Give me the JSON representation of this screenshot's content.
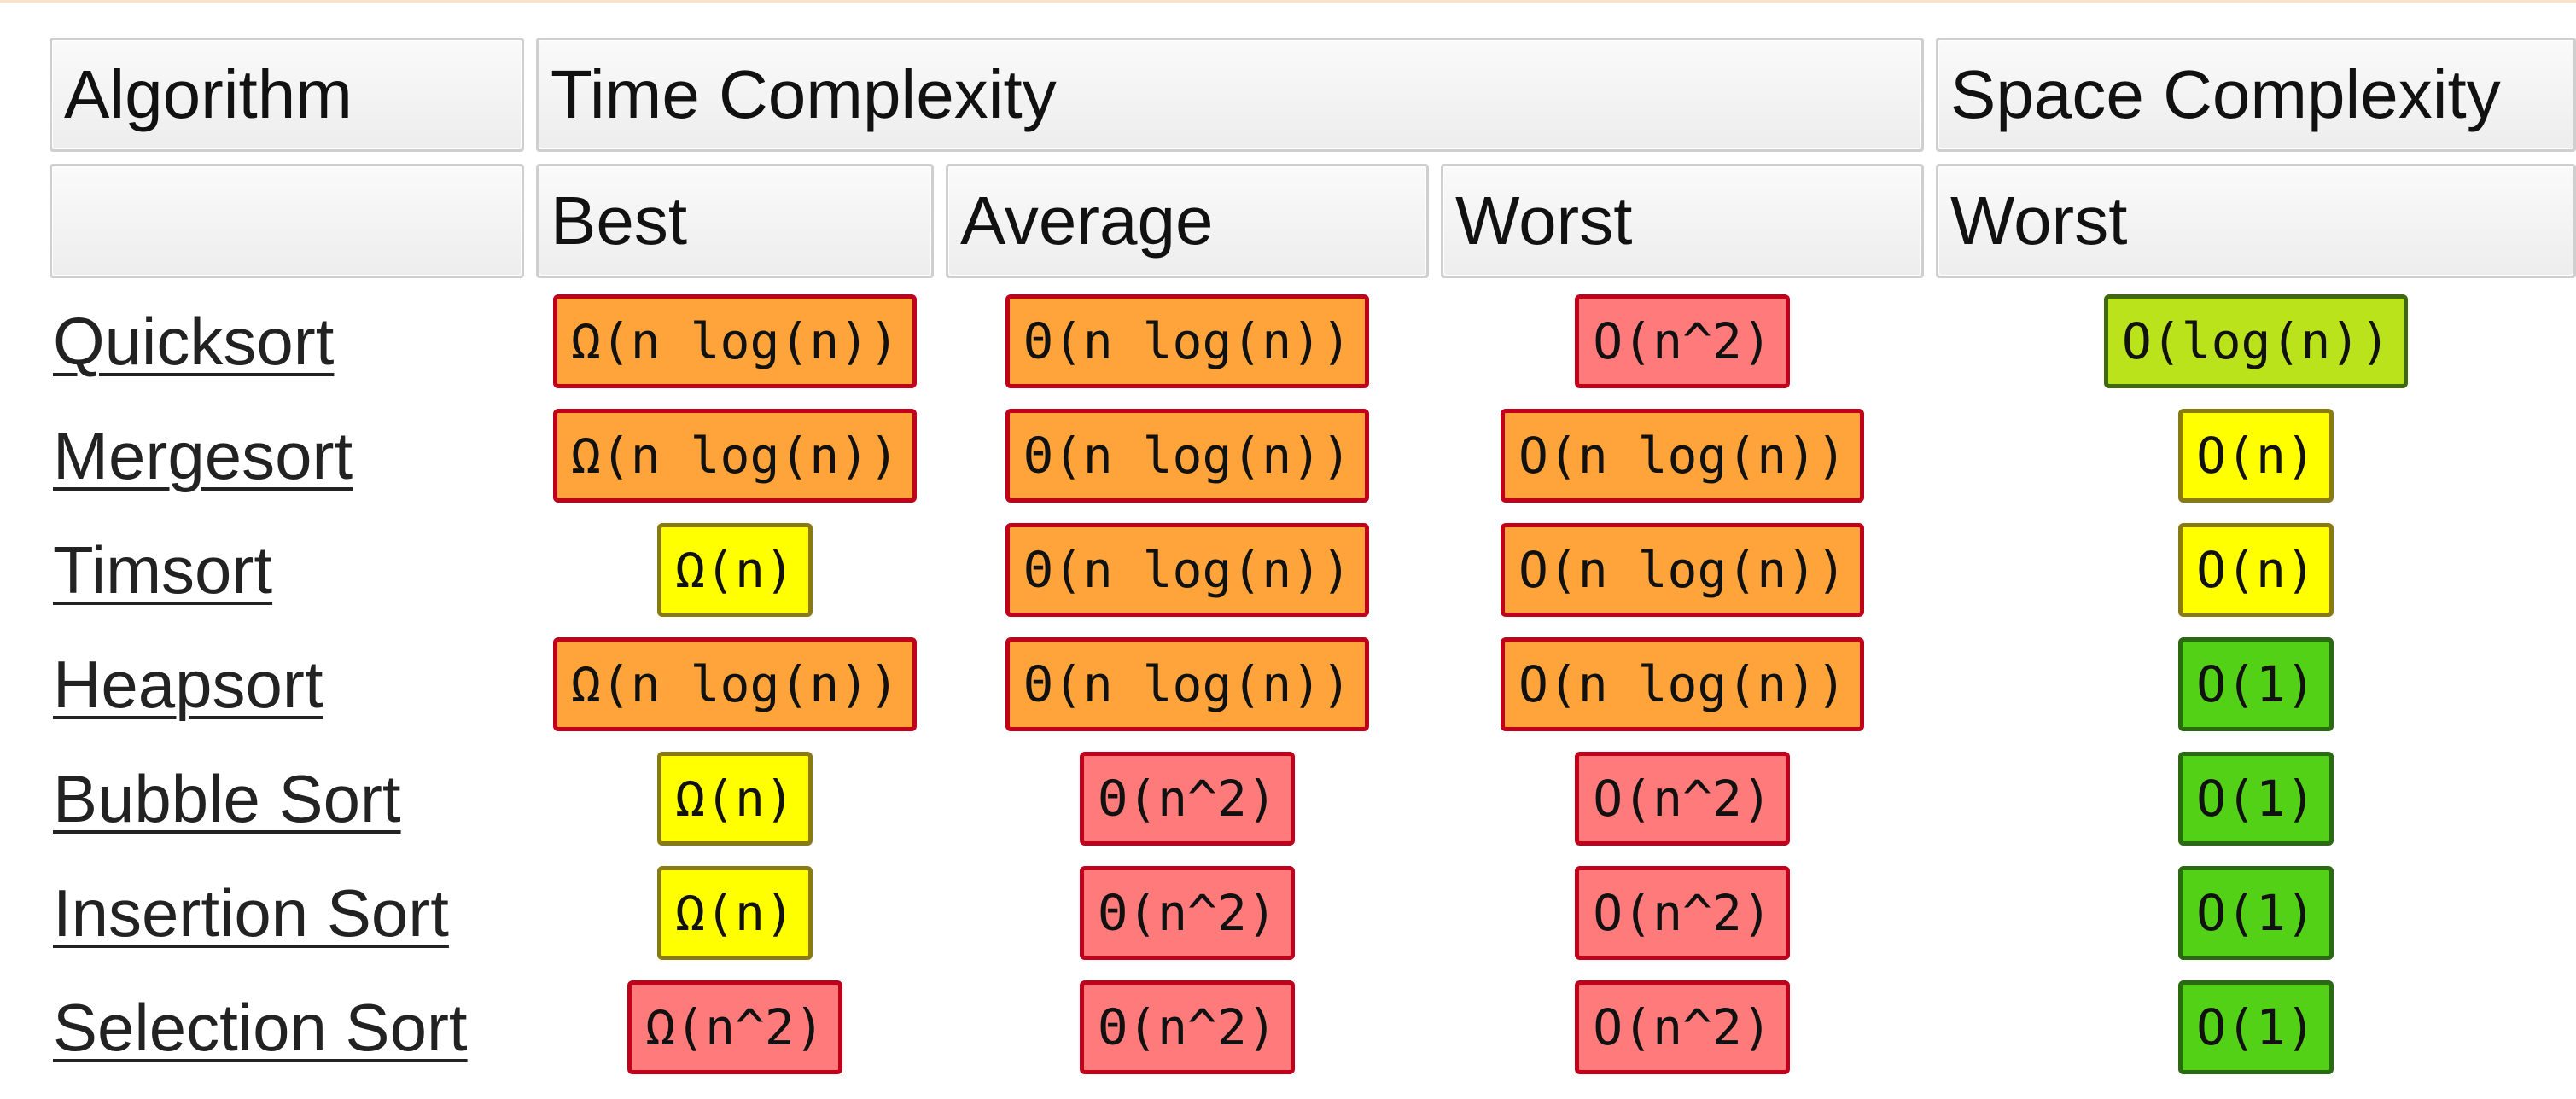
{
  "header": {
    "row1": {
      "algorithm": "Algorithm",
      "time_complexity": "Time Complexity",
      "space_complexity": "Space Complexity"
    },
    "row2": {
      "best": "Best",
      "average": "Average",
      "worst": "Worst",
      "space_worst": "Worst"
    }
  },
  "legend_colors": {
    "excellent": "#53d116",
    "good": "#bbe31b",
    "fair": "#ffff00",
    "bad": "#ffa43a",
    "horrible": "#ff7a7a"
  },
  "rows": [
    {
      "name": "Quicksort",
      "best": {
        "text": "Ω(n log(n))",
        "rating": "bad"
      },
      "average": {
        "text": "Θ(n log(n))",
        "rating": "bad"
      },
      "worst": {
        "text": "O(n^2)",
        "rating": "horrible"
      },
      "space": {
        "text": "O(log(n))",
        "rating": "good"
      }
    },
    {
      "name": "Mergesort",
      "best": {
        "text": "Ω(n log(n))",
        "rating": "bad"
      },
      "average": {
        "text": "Θ(n log(n))",
        "rating": "bad"
      },
      "worst": {
        "text": "O(n log(n))",
        "rating": "bad"
      },
      "space": {
        "text": "O(n)",
        "rating": "fair"
      }
    },
    {
      "name": "Timsort",
      "best": {
        "text": "Ω(n)",
        "rating": "fair"
      },
      "average": {
        "text": "Θ(n log(n))",
        "rating": "bad"
      },
      "worst": {
        "text": "O(n log(n))",
        "rating": "bad"
      },
      "space": {
        "text": "O(n)",
        "rating": "fair"
      }
    },
    {
      "name": "Heapsort",
      "best": {
        "text": "Ω(n log(n))",
        "rating": "bad"
      },
      "average": {
        "text": "Θ(n log(n))",
        "rating": "bad"
      },
      "worst": {
        "text": "O(n log(n))",
        "rating": "bad"
      },
      "space": {
        "text": "O(1)",
        "rating": "excellent"
      }
    },
    {
      "name": "Bubble Sort",
      "best": {
        "text": "Ω(n)",
        "rating": "fair"
      },
      "average": {
        "text": "Θ(n^2)",
        "rating": "horrible"
      },
      "worst": {
        "text": "O(n^2)",
        "rating": "horrible"
      },
      "space": {
        "text": "O(1)",
        "rating": "excellent"
      }
    },
    {
      "name": "Insertion Sort",
      "best": {
        "text": "Ω(n)",
        "rating": "fair"
      },
      "average": {
        "text": "Θ(n^2)",
        "rating": "horrible"
      },
      "worst": {
        "text": "O(n^2)",
        "rating": "horrible"
      },
      "space": {
        "text": "O(1)",
        "rating": "excellent"
      }
    },
    {
      "name": "Selection Sort",
      "best": {
        "text": "Ω(n^2)",
        "rating": "horrible"
      },
      "average": {
        "text": "Θ(n^2)",
        "rating": "horrible"
      },
      "worst": {
        "text": "O(n^2)",
        "rating": "horrible"
      },
      "space": {
        "text": "O(1)",
        "rating": "excellent"
      }
    }
  ]
}
